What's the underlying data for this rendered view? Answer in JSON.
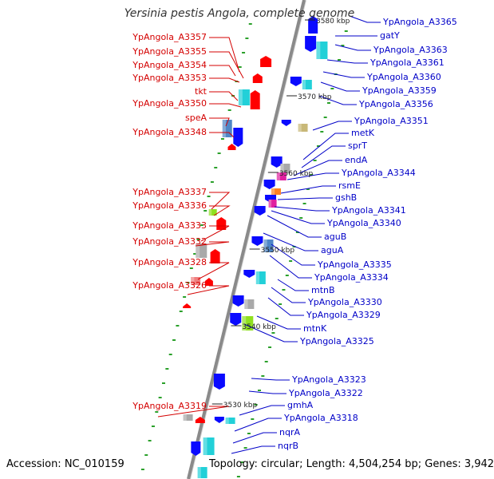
{
  "title": "Yersinia pestis Angola, complete genome",
  "accession": "Accession: NC_010159",
  "topology": "Topology: circular; Length: 4,504,254 bp; Genes: 3,942",
  "colors": {
    "minus_strand_label": "#d40000",
    "plus_strand_label": "#0000c8",
    "backbone": "#8a8a8a",
    "tick": "#2aa02a",
    "gene_red": "#ff0000",
    "gene_blue": "#0a0aff",
    "gene_cyan": "#22d0d8",
    "gene_steel": "#4f86c6",
    "gene_gray": "#a9a9a9",
    "gene_lime": "#8fe020",
    "gene_magenta": "#e020a0",
    "gene_orange": "#ff8020",
    "gene_pink": "#f08080",
    "gene_tan": "#c8b878"
  },
  "scale_labels": [
    {
      "text": "3580 kbp"
    },
    {
      "text": "3570 kbp"
    },
    {
      "text": "3560 kbp"
    },
    {
      "text": "3550 kbp"
    },
    {
      "text": "3540 kbp"
    },
    {
      "text": "3530 kbp"
    }
  ],
  "left_labels": [
    "YpAngola_A3357",
    "YpAngola_A3355",
    "YpAngola_A3354",
    "YpAngola_A3353",
    "tkt",
    "YpAngola_A3350",
    "speA",
    "YpAngola_A3348",
    "YpAngola_A3337",
    "YpAngola_A3336",
    "YpAngola_A3333",
    "YpAngola_A3332",
    "YpAngola_A3328",
    "YpAngola_A3326",
    "YpAngola_A3319"
  ],
  "right_labels": [
    "YpAngola_A3365",
    "gatY",
    "YpAngola_A3363",
    "YpAngola_A3361",
    "YpAngola_A3360",
    "YpAngola_A3359",
    "YpAngola_A3356",
    "YpAngola_A3351",
    "metK",
    "sprT",
    "endA",
    "YpAngola_A3344",
    "rsmE",
    "gshB",
    "YpAngola_A3341",
    "YpAngola_A3340",
    "aguB",
    "aguA",
    "YpAngola_A3335",
    "YpAngola_A3334",
    "mtnB",
    "YpAngola_A3330",
    "YpAngola_A3329",
    "mtnK",
    "YpAngola_A3325",
    "YpAngola_A3323",
    "YpAngola_A3322",
    "gmhA",
    "YpAngola_A3318",
    "nqrA",
    "nqrB"
  ]
}
